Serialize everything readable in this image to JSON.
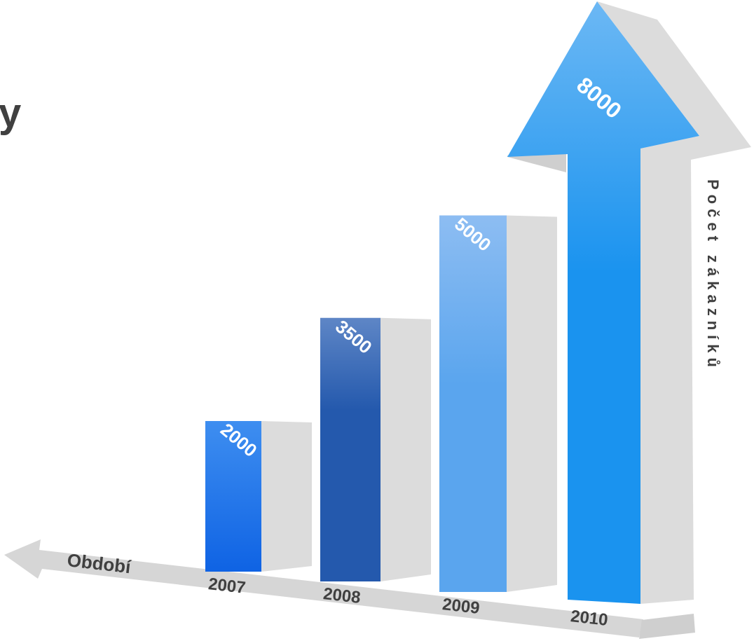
{
  "slide": {
    "title_fragment": "y"
  },
  "colors": {
    "bar_2007": "#1466e6",
    "bar_2008": "#2459ad",
    "bar_2009": "#5aa5ee",
    "bar_2010": "#1a93ef",
    "side": "#dcdcdc",
    "axis": "#d6d6d6",
    "text": "#404040"
  },
  "chart_data": {
    "type": "bar",
    "title": "",
    "xlabel": "Období",
    "ylabel": "Počet zákazníků",
    "categories": [
      "2007",
      "2008",
      "2009",
      "2010"
    ],
    "values": [
      2000,
      3500,
      5000,
      8000
    ],
    "value_labels": [
      "2000",
      "3500",
      "5000",
      "8000"
    ],
    "grid": false,
    "legend": "none",
    "style": "3D bars, last bar drawn as an upward arrow"
  }
}
